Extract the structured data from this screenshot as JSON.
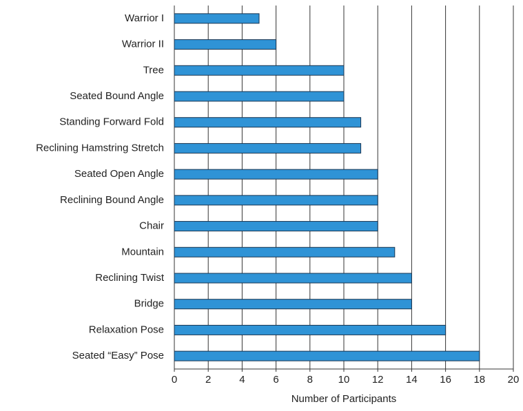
{
  "chart_data": {
    "type": "barh",
    "categories": [
      "Warrior I",
      "Warrior II",
      "Tree",
      "Seated Bound Angle",
      "Standing Forward Fold",
      "Reclining Hamstring Stretch",
      "Seated Open Angle",
      "Reclining Bound Angle",
      "Chair",
      "Mountain",
      "Reclining Twist",
      "Bridge",
      "Relaxation Pose",
      "Seated “Easy” Pose"
    ],
    "values": [
      5,
      6,
      10,
      10,
      11,
      11,
      12,
      12,
      12,
      13,
      14,
      14,
      16,
      18
    ],
    "color": "#2f93d6",
    "xlabel": "Number of Participants",
    "xlim": [
      0,
      20
    ],
    "xticks": [
      0,
      2,
      4,
      6,
      8,
      10,
      12,
      14,
      16,
      18,
      20
    ],
    "grid": true
  }
}
